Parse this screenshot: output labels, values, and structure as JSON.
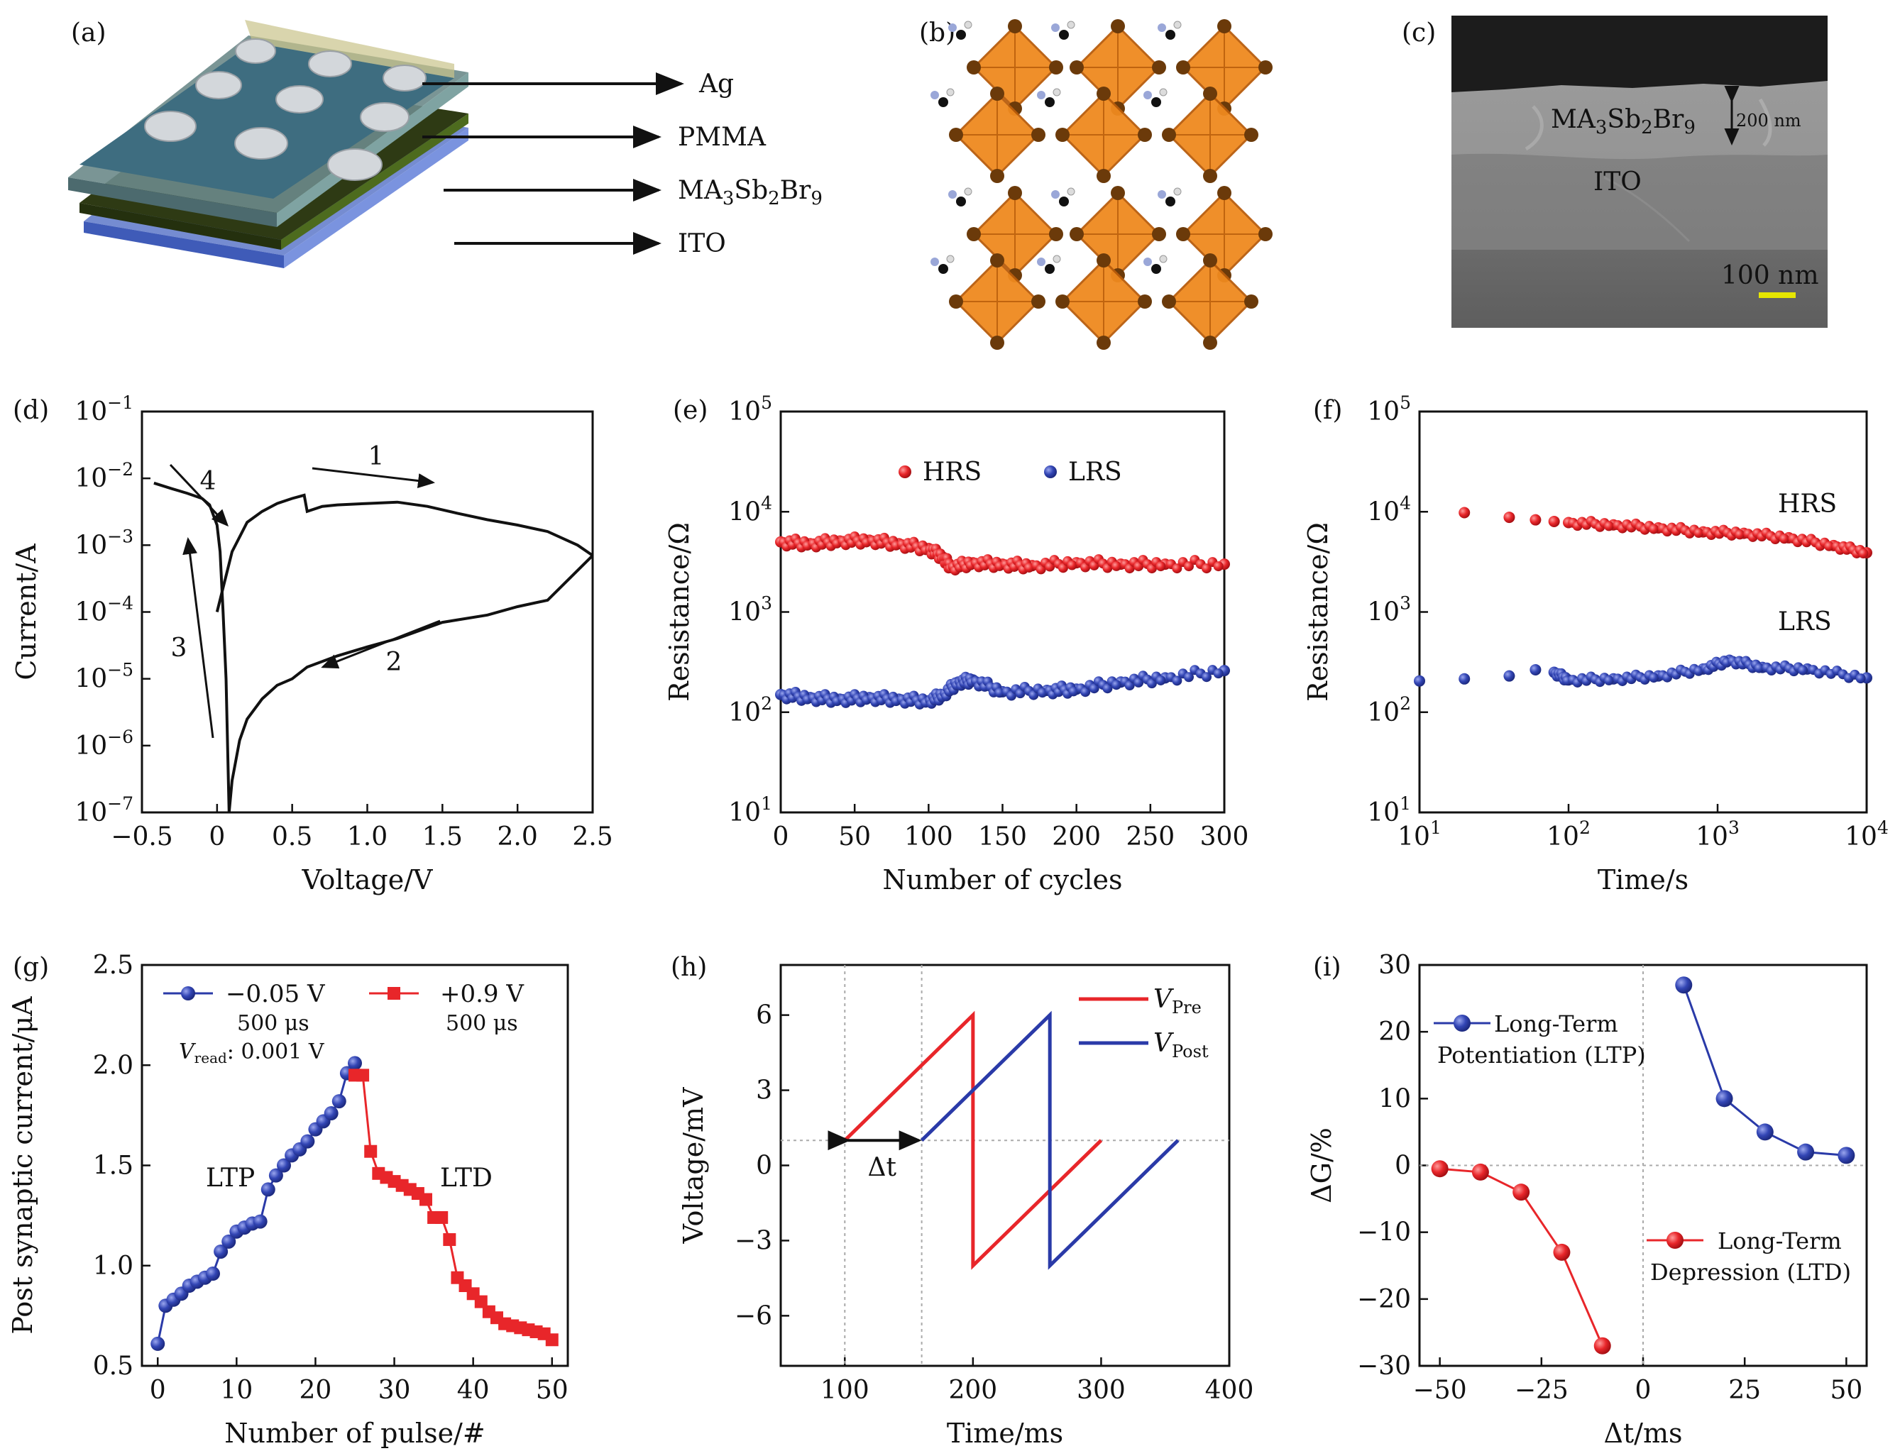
{
  "panel_labels": [
    "(a)",
    "(b)",
    "(c)",
    "(d)",
    "(e)",
    "(f)",
    "(g)",
    "(h)",
    "(i)"
  ],
  "panel_a": {
    "layers": [
      "Ag",
      "PMMA",
      "MA3Sb2Br9",
      "ITO"
    ]
  },
  "panel_c": {
    "layer_top": "MA3Sb2Br9",
    "layer_bottom": "ITO",
    "thickness": "200 nm",
    "scale_bar": "100 nm"
  },
  "colors": {
    "red": "#e8262a",
    "blue": "#2a3aa8",
    "black": "#111111",
    "orange": "#ef8a1f"
  },
  "chart_data": [
    {
      "id": "d",
      "type": "line",
      "title": "",
      "xlabel": "Voltage/V",
      "ylabel": "Current/A",
      "xlim": [
        -0.5,
        2.5
      ],
      "ylim_log10": [
        -7,
        -1
      ],
      "yscale": "log",
      "xticks": [
        "−0.5",
        "0",
        "0.5",
        "1.0",
        "1.5",
        "2.0",
        "2.5"
      ],
      "yticks": [
        "10−7",
        "10−6",
        "10−5",
        "10−4",
        "10−3",
        "10−2",
        "10−1"
      ],
      "annotations": [
        "1",
        "2",
        "3",
        "4"
      ],
      "series": [
        {
          "x": [
            0.0,
            0.1,
            0.2,
            0.3,
            0.4,
            0.5,
            0.58,
            0.6,
            0.7,
            0.8,
            1.0,
            1.2,
            1.4,
            1.6,
            1.8,
            2.0,
            2.2,
            2.4,
            2.5
          ],
          "y": [
            0.0001,
            0.0008,
            0.0022,
            0.0032,
            0.0042,
            0.005,
            0.0056,
            0.0032,
            0.0038,
            0.004,
            0.0042,
            0.0044,
            0.0038,
            0.003,
            0.0024,
            0.002,
            0.0016,
            0.001,
            0.0007
          ]
        },
        {
          "x": [
            2.5,
            2.2,
            2.0,
            1.8,
            1.5,
            1.2,
            1.0,
            0.8,
            0.6,
            0.5,
            0.4,
            0.3,
            0.2,
            0.15,
            0.1,
            0.08
          ],
          "y": [
            0.0007,
            0.00015,
            0.00012,
            9e-05,
            7e-05,
            4e-05,
            3e-05,
            2.2e-05,
            1.5e-05,
            1e-05,
            8e-06,
            5e-06,
            2.5e-06,
            1.2e-06,
            3e-07,
            1e-07
          ]
        },
        {
          "x": [
            0.08,
            0.06,
            0.04,
            0.02,
            0.0,
            -0.05,
            -0.1,
            -0.2,
            -0.3,
            -0.42
          ],
          "y": [
            1e-07,
            1e-05,
            0.0001,
            0.0008,
            0.002,
            0.004,
            0.005,
            0.006,
            0.007,
            0.0085
          ]
        }
      ]
    },
    {
      "id": "e",
      "type": "scatter",
      "title": "",
      "xlabel": "Number of cycles",
      "ylabel": "Resistance/Ω",
      "xlim": [
        0,
        300
      ],
      "ylim_log10": [
        1,
        5
      ],
      "yscale": "log",
      "xticks": [
        "0",
        "50",
        "100",
        "150",
        "200",
        "250",
        "300"
      ],
      "yticks": [
        "101",
        "102",
        "103",
        "104",
        "105"
      ],
      "legend": "top-center",
      "series": [
        {
          "name": "HRS",
          "x": [
            0,
            20,
            40,
            60,
            80,
            100,
            110,
            115,
            130,
            150,
            170,
            200,
            230,
            260,
            300
          ],
          "y": [
            5000,
            4800,
            5100,
            5200,
            4800,
            4300,
            3500,
            2800,
            3100,
            3000,
            2900,
            3100,
            3000,
            3000,
            3000
          ]
        },
        {
          "name": "LRS",
          "x": [
            0,
            20,
            40,
            60,
            80,
            100,
            110,
            120,
            130,
            150,
            180,
            200,
            230,
            260,
            300
          ],
          "y": [
            150,
            140,
            135,
            140,
            135,
            130,
            150,
            200,
            210,
            160,
            165,
            170,
            200,
            220,
            260
          ]
        }
      ]
    },
    {
      "id": "f",
      "type": "scatter",
      "title": "",
      "xlabel": "Time/s",
      "ylabel": "Resistance/Ω",
      "xscale": "log",
      "yscale": "log",
      "xlim_log10": [
        1,
        4
      ],
      "ylim_log10": [
        1,
        5
      ],
      "xticks": [
        "101",
        "102",
        "103",
        "104"
      ],
      "yticks": [
        "101",
        "102",
        "103",
        "104",
        "105"
      ],
      "annotations": [
        "HRS",
        "LRS"
      ],
      "series": [
        {
          "name": "HRS",
          "x": [
            20,
            40,
            60,
            80,
            100,
            200,
            400,
            800,
            1500,
            3000,
            6000,
            10000
          ],
          "y": [
            9800,
            8800,
            8300,
            8000,
            7800,
            7400,
            6900,
            6300,
            6100,
            5500,
            4600,
            3900
          ]
        },
        {
          "name": "LRS",
          "x": [
            10,
            20,
            40,
            60,
            80,
            100,
            200,
            400,
            800,
            1200,
            2000,
            4000,
            10000
          ],
          "y": [
            205,
            215,
            230,
            265,
            250,
            210,
            215,
            230,
            270,
            330,
            280,
            270,
            220
          ]
        }
      ]
    },
    {
      "id": "g",
      "type": "line",
      "title": "",
      "xlabel": "Number of pulse/#",
      "ylabel": "Post synaptic current/μA",
      "xlim": [
        -2,
        52
      ],
      "ylim": [
        0.5,
        2.5
      ],
      "xticks": [
        "0",
        "10",
        "20",
        "30",
        "40",
        "50"
      ],
      "yticks": [
        "0.5",
        "1.0",
        "1.5",
        "2.0",
        "2.5"
      ],
      "legend": "top-left",
      "annotations": [
        "LTP",
        "LTD"
      ],
      "read_note_prefix": "V",
      "read_note_sub": "read",
      "read_note_suffix": ": 0.001 V",
      "series": [
        {
          "name": "−0.05 V",
          "sub": "500 μs",
          "x": [
            0,
            1,
            2,
            3,
            4,
            5,
            6,
            7,
            8,
            9,
            10,
            11,
            12,
            13,
            14,
            15,
            16,
            17,
            18,
            19,
            20,
            21,
            22,
            23,
            24,
            25
          ],
          "y": [
            0.61,
            0.8,
            0.83,
            0.86,
            0.9,
            0.92,
            0.94,
            0.96,
            1.07,
            1.12,
            1.17,
            1.19,
            1.21,
            1.22,
            1.38,
            1.45,
            1.5,
            1.55,
            1.58,
            1.62,
            1.68,
            1.72,
            1.76,
            1.82,
            1.96,
            2.01
          ]
        },
        {
          "name": "+0.9 V",
          "sub": "500 μs",
          "x": [
            25,
            26,
            27,
            28,
            29,
            30,
            31,
            32,
            33,
            34,
            35,
            36,
            37,
            38,
            39,
            40,
            41,
            42,
            43,
            44,
            45,
            46,
            47,
            48,
            49,
            50
          ],
          "y": [
            1.95,
            1.95,
            1.57,
            1.46,
            1.44,
            1.42,
            1.4,
            1.38,
            1.36,
            1.33,
            1.24,
            1.24,
            1.13,
            0.94,
            0.9,
            0.86,
            0.82,
            0.77,
            0.74,
            0.71,
            0.7,
            0.69,
            0.68,
            0.67,
            0.66,
            0.63
          ]
        }
      ]
    },
    {
      "id": "h",
      "type": "line",
      "title": "",
      "xlabel": "Time/ms",
      "ylabel": "Voltage/mV",
      "xlim": [
        50,
        400
      ],
      "ylim": [
        -8,
        8
      ],
      "xticks": [
        "100",
        "200",
        "300",
        "400"
      ],
      "yticks": [
        "−6",
        "−3",
        "0",
        "3",
        "6"
      ],
      "legend": "top-right",
      "annotations": [
        "Δt"
      ],
      "series": [
        {
          "name": "V",
          "sub": "Pre",
          "x": [
            100,
            200,
            200,
            300
          ],
          "y": [
            1,
            6,
            -4,
            1
          ]
        },
        {
          "name": "V",
          "sub": "Post",
          "x": [
            160,
            260,
            260,
            360
          ],
          "y": [
            1,
            6,
            -4,
            1
          ]
        }
      ]
    },
    {
      "id": "i",
      "type": "line",
      "title": "",
      "xlabel": "Δt/ms",
      "ylabel": "ΔG/%",
      "xlim": [
        -55,
        55
      ],
      "ylim": [
        -30,
        30
      ],
      "xticks": [
        "−50",
        "−25",
        "0",
        "25",
        "50"
      ],
      "yticks": [
        "−30",
        "−20",
        "−10",
        "0",
        "10",
        "20",
        "30"
      ],
      "series": [
        {
          "name": "Long-Term Potentiation (LTP)",
          "name_l1": "Long-Term",
          "name_l2": "Potentiation (LTP)",
          "x": [
            10,
            20,
            30,
            40,
            50
          ],
          "y": [
            27,
            10,
            5,
            2,
            1.5
          ]
        },
        {
          "name": "Long-Term Depression (LTD)",
          "name_l1": "Long-Term",
          "name_l2": "Depression (LTD)",
          "x": [
            -50,
            -40,
            -30,
            -20,
            -10
          ],
          "y": [
            -0.5,
            -1,
            -4,
            -13,
            -27
          ]
        }
      ]
    }
  ]
}
